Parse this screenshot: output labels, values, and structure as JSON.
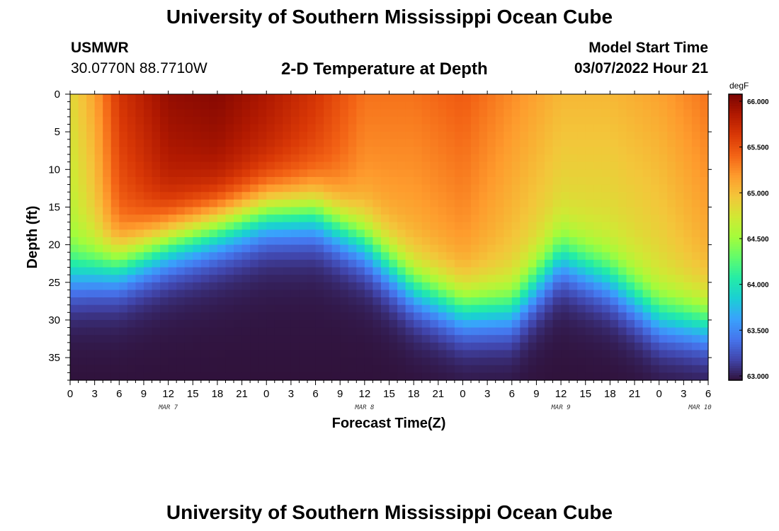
{
  "header": {
    "title": "University of Southern Mississippi Ocean Cube",
    "station": "USMWR",
    "coords": "30.0770N  88.7710W",
    "chart_title": "2-D Temperature at Depth",
    "model_label": "Model Start Time",
    "model_time": "03/07/2022 Hour 21"
  },
  "footer": {
    "title": "University of Southern Mississippi Ocean Cube"
  },
  "chart_data": {
    "type": "heatmap",
    "title": "2-D Temperature at Depth",
    "xlabel": "Forecast Time(Z)",
    "ylabel": "Depth (ft)",
    "x_tick_labels": [
      "0",
      "3",
      "6",
      "9",
      "12",
      "15",
      "18",
      "21",
      "0",
      "3",
      "6",
      "9",
      "12",
      "15",
      "18",
      "21",
      "0",
      "3",
      "6",
      "9",
      "12",
      "15",
      "18",
      "21",
      "0",
      "3",
      "6"
    ],
    "x_range_hours": [
      0,
      78
    ],
    "date_labels": [
      {
        "label": "MAR 7",
        "hour": 12
      },
      {
        "label": "MAR 8",
        "hour": 36
      },
      {
        "label": "MAR 9",
        "hour": 60
      },
      {
        "label": "MAR 10",
        "hour": 77
      }
    ],
    "y_ticks": [
      0,
      5,
      10,
      15,
      20,
      25,
      30,
      35
    ],
    "y_range_ft": [
      0,
      38
    ],
    "colorbar": {
      "unit": "degF",
      "min": 63.0,
      "max": 66.0,
      "tick_labels": [
        "66.000",
        "65.500",
        "65.000",
        "64.500",
        "64.000",
        "63.500",
        "63.000"
      ],
      "tick_values": [
        66.0,
        65.5,
        65.0,
        64.5,
        64.0,
        63.5,
        63.0
      ],
      "colors": [
        "#30123b",
        "#4145ab",
        "#4675ed",
        "#39a2fc",
        "#1bcfd4",
        "#24eca6",
        "#61fc6c",
        "#a4fc3b",
        "#d1e834",
        "#f3c63a",
        "#fe9b2d",
        "#f36315",
        "#d93806",
        "#b11901",
        "#7a0402"
      ]
    },
    "thermocline_depth_ft": [
      {
        "hour": 0,
        "depth": 24.5
      },
      {
        "hour": 6,
        "depth": 23
      },
      {
        "hour": 12,
        "depth": 20
      },
      {
        "hour": 18,
        "depth": 18
      },
      {
        "hour": 24,
        "depth": 16
      },
      {
        "hour": 30,
        "depth": 16
      },
      {
        "hour": 36,
        "depth": 20
      },
      {
        "hour": 42,
        "depth": 26
      },
      {
        "hour": 48,
        "depth": 29
      },
      {
        "hour": 54,
        "depth": 29
      },
      {
        "hour": 60,
        "depth": 22
      },
      {
        "hour": 66,
        "depth": 25
      },
      {
        "hour": 72,
        "depth": 30
      },
      {
        "hour": 78,
        "depth": 31
      }
    ],
    "surface_temp_degF": [
      {
        "hour": 0,
        "value": 64.8
      },
      {
        "hour": 3,
        "value": 65.1
      },
      {
        "hour": 6,
        "value": 65.6
      },
      {
        "hour": 12,
        "value": 65.9
      },
      {
        "hour": 18,
        "value": 65.95
      },
      {
        "hour": 24,
        "value": 65.8
      },
      {
        "hour": 30,
        "value": 65.6
      },
      {
        "hour": 36,
        "value": 65.3
      },
      {
        "hour": 42,
        "value": 65.3
      },
      {
        "hour": 48,
        "value": 65.4
      },
      {
        "hour": 54,
        "value": 65.2
      },
      {
        "hour": 60,
        "value": 65.0
      },
      {
        "hour": 66,
        "value": 65.0
      },
      {
        "hour": 72,
        "value": 65.1
      },
      {
        "hour": 78,
        "value": 65.3
      }
    ],
    "bottom_temp_degF": 63.0
  }
}
